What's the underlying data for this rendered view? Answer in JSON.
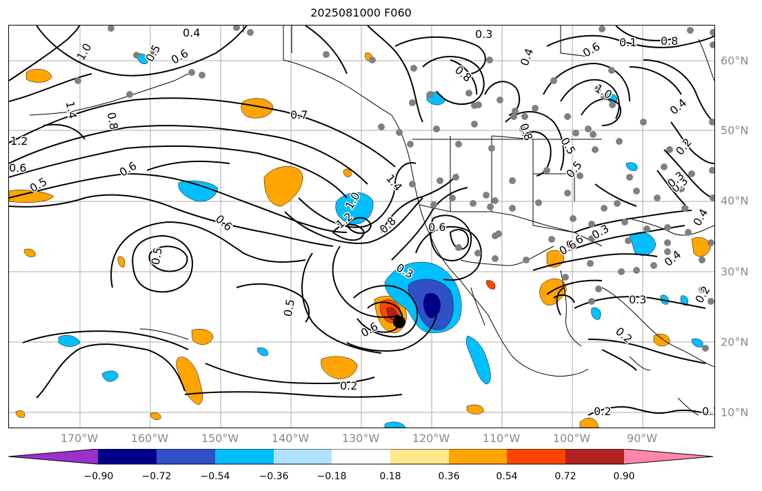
{
  "title": "2025081000 F060",
  "longitude_labels": [
    "170°W",
    "160°W",
    "150°W",
    "140°W",
    "130°W",
    "120°W",
    "110°W",
    "100°W",
    "90°W"
  ],
  "latitude_labels": [
    "60°N",
    "50°N",
    "40°N",
    "30°N",
    "20°N",
    "10°N"
  ],
  "contour_labels": [
    "0.4",
    "1.0",
    "0.5",
    "0.6",
    "0.3",
    "0.8",
    "0.4",
    "0.6",
    "0.1",
    "0.8",
    "1.4",
    "0.8",
    "1.0",
    "0.7",
    "0.4",
    "0.2",
    "0.8",
    "1.2",
    "0.6",
    "0.5",
    "0.5",
    "0.6",
    "0.3",
    "0.6",
    "1.4",
    "1.0",
    "1.2",
    "0.8",
    "0.6",
    "0.5",
    "0.6",
    "0.3",
    "0.3",
    "0.4",
    "0.4",
    "0.3",
    "0.5",
    "0.6",
    "0.3",
    "0.2",
    "0.2",
    "0.2",
    "0.1",
    "0.2",
    "0.5",
    "0.6"
  ],
  "colorbar": {
    "ticks": [
      "−0.90",
      "−0.72",
      "−0.54",
      "−0.36",
      "−0.18",
      "0.18",
      "0.36",
      "0.54",
      "0.72",
      "0.90"
    ],
    "colors": [
      "#9932cc",
      "#00008b",
      "#3050c8",
      "#00bfff",
      "#b0e0ff",
      "#ffffff",
      "#ffe88a",
      "#ffa500",
      "#ff4500",
      "#b22222",
      "#ff88aa"
    ]
  },
  "colors": {
    "station_dot": "#808080",
    "storm_center": "#000000",
    "grid": "#aaaaaa",
    "contour": "#000000"
  }
}
